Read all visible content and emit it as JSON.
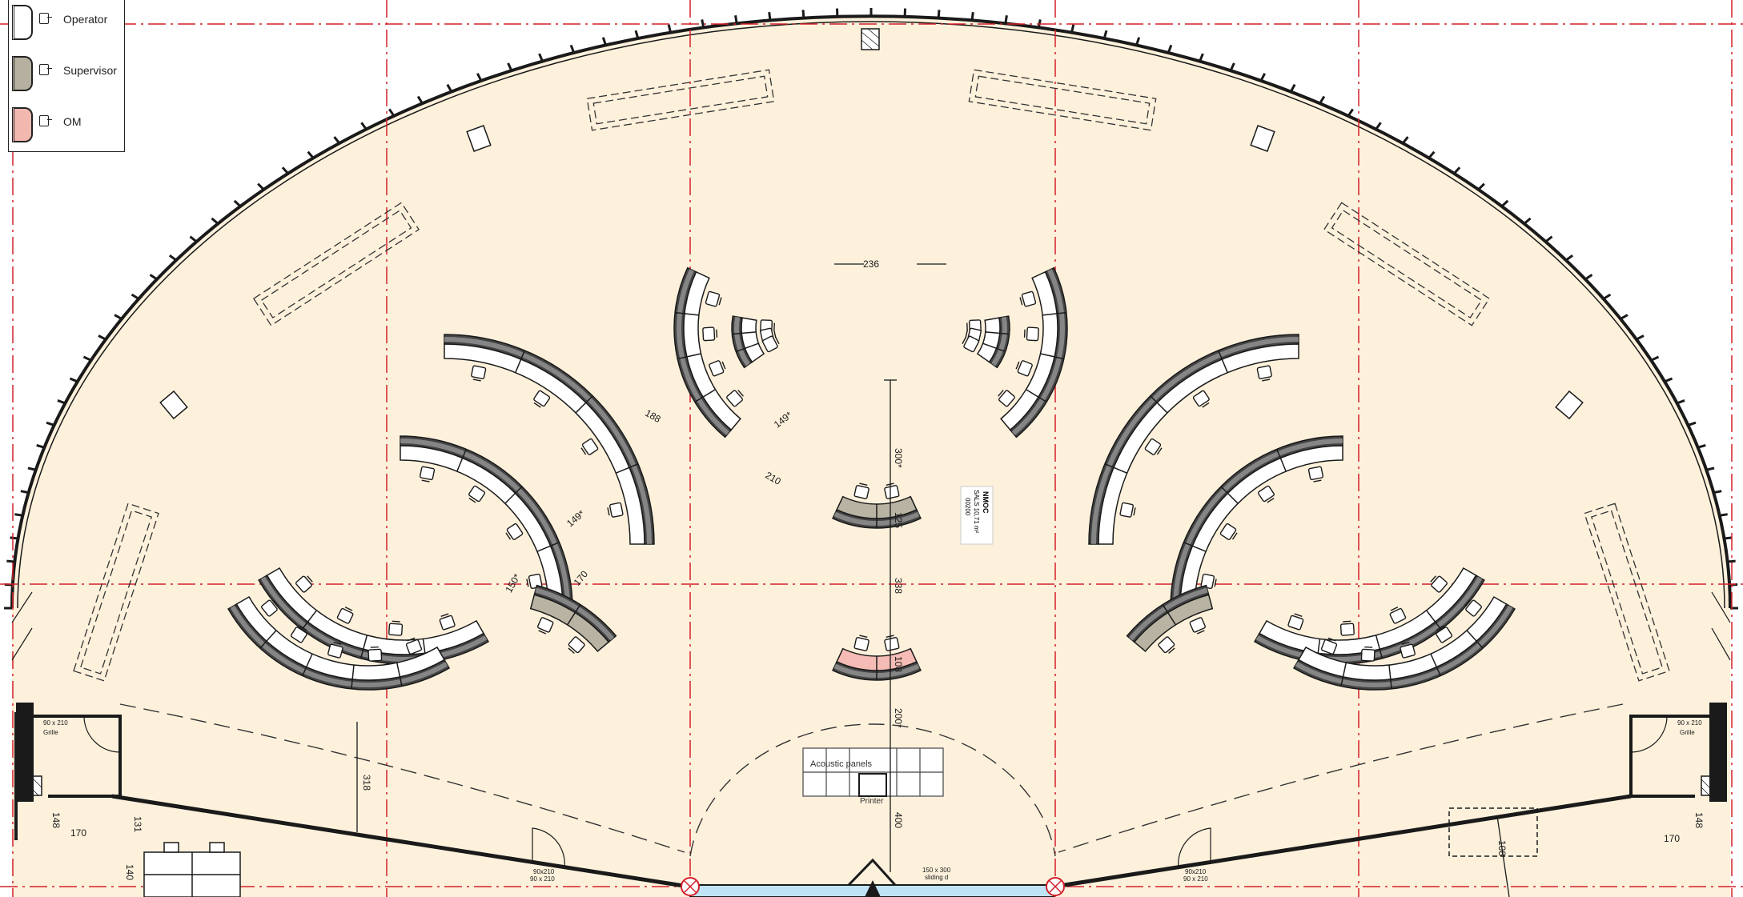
{
  "legend": {
    "items": [
      {
        "label": "Operator",
        "color": "#ffffff"
      },
      {
        "label": "Supervisor",
        "color": "#b5b0a0"
      },
      {
        "label": "OM",
        "color": "#f2b8b0"
      }
    ]
  },
  "colors": {
    "floor": "#fdf1dc",
    "gridline": "#d4202a",
    "wall": "#1a1a1a",
    "glass": "#bfe4f6",
    "desk_operator": "#ffffff",
    "desk_supervisor": "#b8b3a2",
    "desk_om": "#f4bcb4"
  },
  "dimensions": {
    "d236": "236",
    "d188": "188",
    "d149a": "149*",
    "d300": "300*",
    "d210": "210",
    "d149b": "149*",
    "d170": "170",
    "d150": "150*",
    "d125": "125",
    "d338": "338",
    "d108": "108",
    "d200": "200*",
    "d400": "400",
    "d318": "318",
    "d148a": "148",
    "d148b": "148",
    "d170b": "170",
    "d170c": "170",
    "d131": "131",
    "d140": "140",
    "d108b": "108"
  },
  "room_label": {
    "line1": "NMOC",
    "line2": "SALS 10,71 m²",
    "line3": "00200"
  },
  "annotations": {
    "acoustic": "Acoustic panels",
    "printer": "Printer",
    "door_center": "150 x 300",
    "door_center_2": "sliding d",
    "door_left": "90x210",
    "door_left_2": "90 x 210",
    "door_right": "90x210",
    "door_right_2": "90 x 210",
    "left_room_1": "90 x 210",
    "left_room_2": "Grille",
    "right_room_1": "90 x 210",
    "right_room_2": "Grille"
  }
}
